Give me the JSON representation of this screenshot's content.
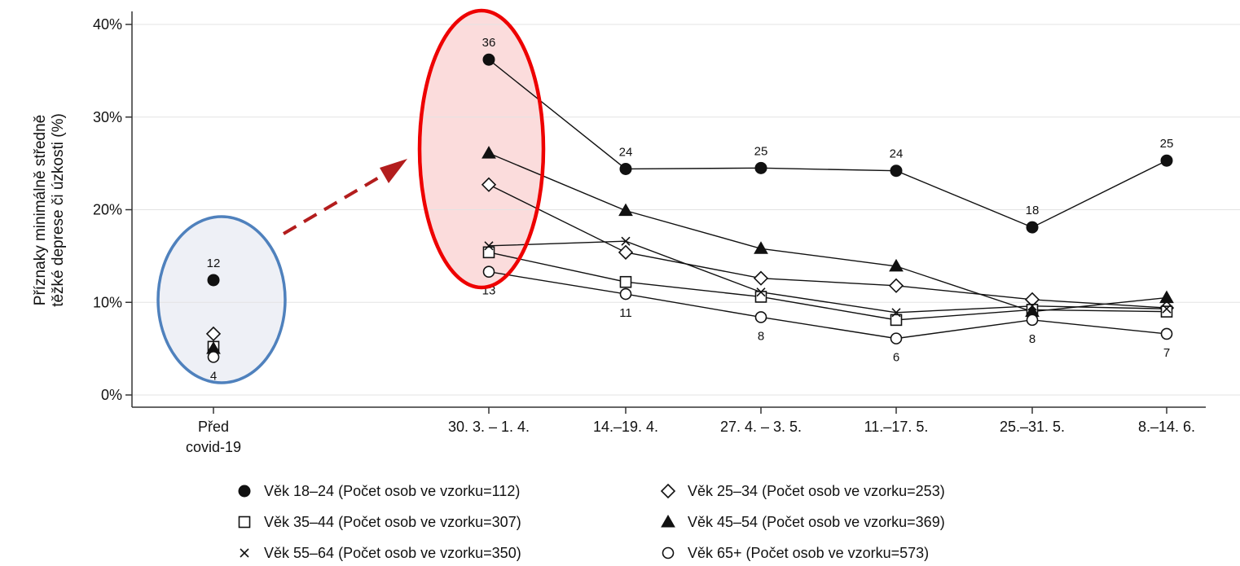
{
  "chart_data": {
    "type": "line",
    "ylabel": [
      "Příznaky minimálně středně",
      "těžké deprese či úzkosti (%)"
    ],
    "ylim": [
      0,
      40
    ],
    "yticks": [
      {
        "value": 0,
        "label": "0%"
      },
      {
        "value": 10,
        "label": "10%"
      },
      {
        "value": 20,
        "label": "20%"
      },
      {
        "value": 30,
        "label": "30%"
      },
      {
        "value": 40,
        "label": "40%"
      }
    ],
    "categories": [
      [
        "Před",
        "covid-19"
      ],
      [
        "30. 3. – 1. 4."
      ],
      [
        "14.–19. 4."
      ],
      [
        "27. 4. – 3. 5."
      ],
      [
        "11.–17. 5."
      ],
      [
        "25.–31. 5."
      ],
      [
        "8.–14. 6."
      ]
    ],
    "grid": "horizontal",
    "legend_position": "bottom",
    "series": [
      {
        "name": "Věk 18–24 (Počet osob ve vzorku=112)",
        "marker": "filled-circle",
        "values": [
          12.4,
          36.2,
          24.4,
          24.5,
          24.2,
          18.1,
          25.3
        ]
      },
      {
        "name": "Věk 25–34 (Počet osob ve vzorku=253)",
        "marker": "open-diamond",
        "values": [
          6.6,
          22.7,
          15.4,
          12.6,
          11.8,
          10.3,
          9.4
        ]
      },
      {
        "name": "Věk 35–44 (Počet osob ve vzorku=307)",
        "marker": "open-square",
        "values": [
          5.2,
          15.4,
          12.2,
          10.6,
          8.1,
          9.2,
          9.0
        ]
      },
      {
        "name": "Věk 45–54 (Počet osob ve vzorku=369)",
        "marker": "filled-triangle",
        "values": [
          5.0,
          26.1,
          19.9,
          15.8,
          13.9,
          9.0,
          10.5
        ]
      },
      {
        "name": "Věk 55–64 (Počet osob ve vzorku=350)",
        "marker": "x",
        "values": [
          4.6,
          16.1,
          16.6,
          11.1,
          8.9,
          9.6,
          9.3
        ]
      },
      {
        "name": "Věk 65+ (Počet osob ve vzorku=573)",
        "marker": "open-circle",
        "values": [
          4.1,
          13.3,
          10.9,
          8.4,
          6.1,
          8.1,
          6.6
        ]
      }
    ],
    "data_labels": [
      {
        "series": 0,
        "point": 0,
        "text": "12",
        "position": "above"
      },
      {
        "series": 5,
        "point": 0,
        "text": "4",
        "position": "below"
      },
      {
        "series": 0,
        "point": 1,
        "text": "36",
        "position": "above"
      },
      {
        "series": 5,
        "point": 1,
        "text": "13",
        "position": "below"
      },
      {
        "series": 0,
        "point": 2,
        "text": "24",
        "position": "above"
      },
      {
        "series": 5,
        "point": 2,
        "text": "11",
        "position": "below"
      },
      {
        "series": 0,
        "point": 3,
        "text": "25",
        "position": "above"
      },
      {
        "series": 5,
        "point": 3,
        "text": "8",
        "position": "below"
      },
      {
        "series": 0,
        "point": 4,
        "text": "24",
        "position": "above"
      },
      {
        "series": 5,
        "point": 4,
        "text": "6",
        "position": "below"
      },
      {
        "series": 0,
        "point": 5,
        "text": "18",
        "position": "above"
      },
      {
        "series": 5,
        "point": 5,
        "text": "8",
        "position": "below"
      },
      {
        "series": 0,
        "point": 6,
        "text": "25",
        "position": "above"
      },
      {
        "series": 5,
        "point": 6,
        "text": "7",
        "position": "below"
      }
    ],
    "annotations": {
      "before_ellipse": {
        "stroke": "#4f81bd",
        "fill": "#eef0f6"
      },
      "peak_ellipse": {
        "stroke": "#ee0000",
        "fill": "#fbdcdc"
      },
      "arrow": {
        "color": "#b31d1d",
        "style": "dashed"
      }
    },
    "colors": {
      "line": "#111111",
      "grid": "#e3e3e3",
      "axis": "#333333"
    }
  }
}
